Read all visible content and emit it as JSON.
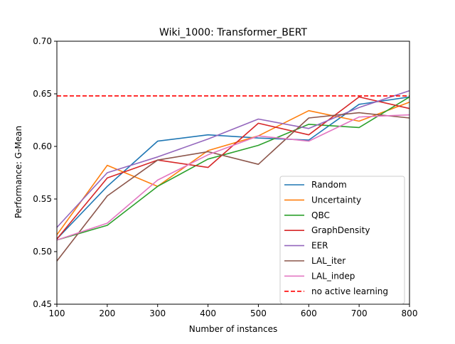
{
  "chart_data": {
    "type": "line",
    "title": "Wiki_1000: Transformer_BERT",
    "xlabel": "Number of instances",
    "ylabel": "Performance: G-Mean",
    "xlim": [
      100,
      800
    ],
    "ylim": [
      0.45,
      0.7
    ],
    "x_ticks": [
      100,
      200,
      300,
      400,
      500,
      600,
      700,
      800
    ],
    "x_tick_labels": [
      "100",
      "200",
      "300",
      "400",
      "500",
      "600",
      "700",
      "800"
    ],
    "y_ticks": [
      0.45,
      0.5,
      0.55,
      0.6,
      0.65,
      0.7
    ],
    "y_tick_labels": [
      "0.45",
      "0.50",
      "0.55",
      "0.60",
      "0.65",
      "0.70"
    ],
    "grid": false,
    "legend_position": "lower-right",
    "x": [
      100,
      200,
      300,
      400,
      500,
      600,
      700,
      800
    ],
    "series": [
      {
        "name": "Random",
        "color": "#1f77b4",
        "values": [
          0.512,
          0.562,
          0.605,
          0.611,
          0.608,
          0.606,
          0.64,
          0.647
        ]
      },
      {
        "name": "Uncertainty",
        "color": "#ff7f0e",
        "values": [
          0.516,
          0.582,
          0.562,
          0.596,
          0.61,
          0.634,
          0.624,
          0.642
        ]
      },
      {
        "name": "QBC",
        "color": "#2ca02c",
        "values": [
          0.511,
          0.525,
          0.562,
          0.588,
          0.601,
          0.621,
          0.618,
          0.647
        ]
      },
      {
        "name": "GraphDensity",
        "color": "#d62728",
        "values": [
          0.512,
          0.57,
          0.587,
          0.58,
          0.622,
          0.611,
          0.647,
          0.636
        ]
      },
      {
        "name": "EER",
        "color": "#9467bd",
        "values": [
          0.523,
          0.575,
          0.59,
          0.607,
          0.626,
          0.617,
          0.637,
          0.653
        ]
      },
      {
        "name": "LAL_iter",
        "color": "#8c564b",
        "values": [
          0.491,
          0.553,
          0.587,
          0.595,
          0.583,
          0.627,
          0.632,
          0.627
        ]
      },
      {
        "name": "LAL_indep",
        "color": "#e377c2",
        "values": [
          0.511,
          0.527,
          0.568,
          0.592,
          0.61,
          0.605,
          0.628,
          0.63
        ]
      }
    ],
    "reference_lines": [
      {
        "name": "no active learning",
        "color": "#ff0000",
        "style": "dashed",
        "y": 0.648
      }
    ]
  }
}
